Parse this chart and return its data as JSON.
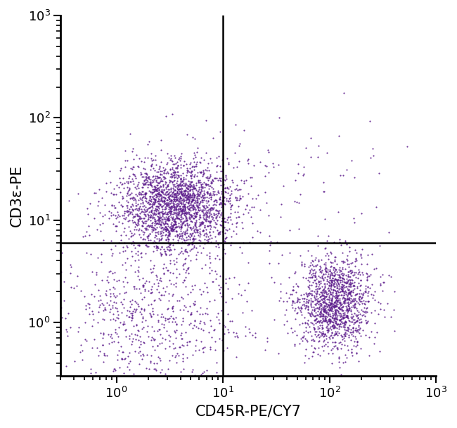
{
  "title": "",
  "xlabel": "CD45R-PE/CY7",
  "ylabel": "CD3ε-PE",
  "xlim_log": [
    0.3,
    1000
  ],
  "ylim_log": [
    0.3,
    1000
  ],
  "xline": 10,
  "yline": 6.0,
  "dot_color": "#5B1A8B",
  "dot_alpha": 0.85,
  "dot_size": 2.5,
  "clusters": [
    {
      "name": "upper_left",
      "x_center_log": 0.55,
      "y_center_log": 1.15,
      "x_spread": 0.28,
      "y_spread": 0.22,
      "n_points": 2200
    },
    {
      "name": "lower_right",
      "x_center_log": 2.05,
      "y_center_log": 0.2,
      "x_spread": 0.18,
      "y_spread": 0.22,
      "n_points": 1400
    },
    {
      "name": "lower_left_scatter",
      "x_center_log": 0.35,
      "y_center_log": 0.05,
      "x_spread": 0.45,
      "y_spread": 0.38,
      "n_points": 750
    },
    {
      "name": "upper_right_sparse",
      "x_center_log": 1.6,
      "y_center_log": 1.4,
      "x_spread": 0.55,
      "y_spread": 0.45,
      "n_points": 90
    }
  ],
  "background_color": "#ffffff",
  "axis_color": "#000000",
  "tick_label_fontsize": 13,
  "axis_label_fontsize": 15
}
